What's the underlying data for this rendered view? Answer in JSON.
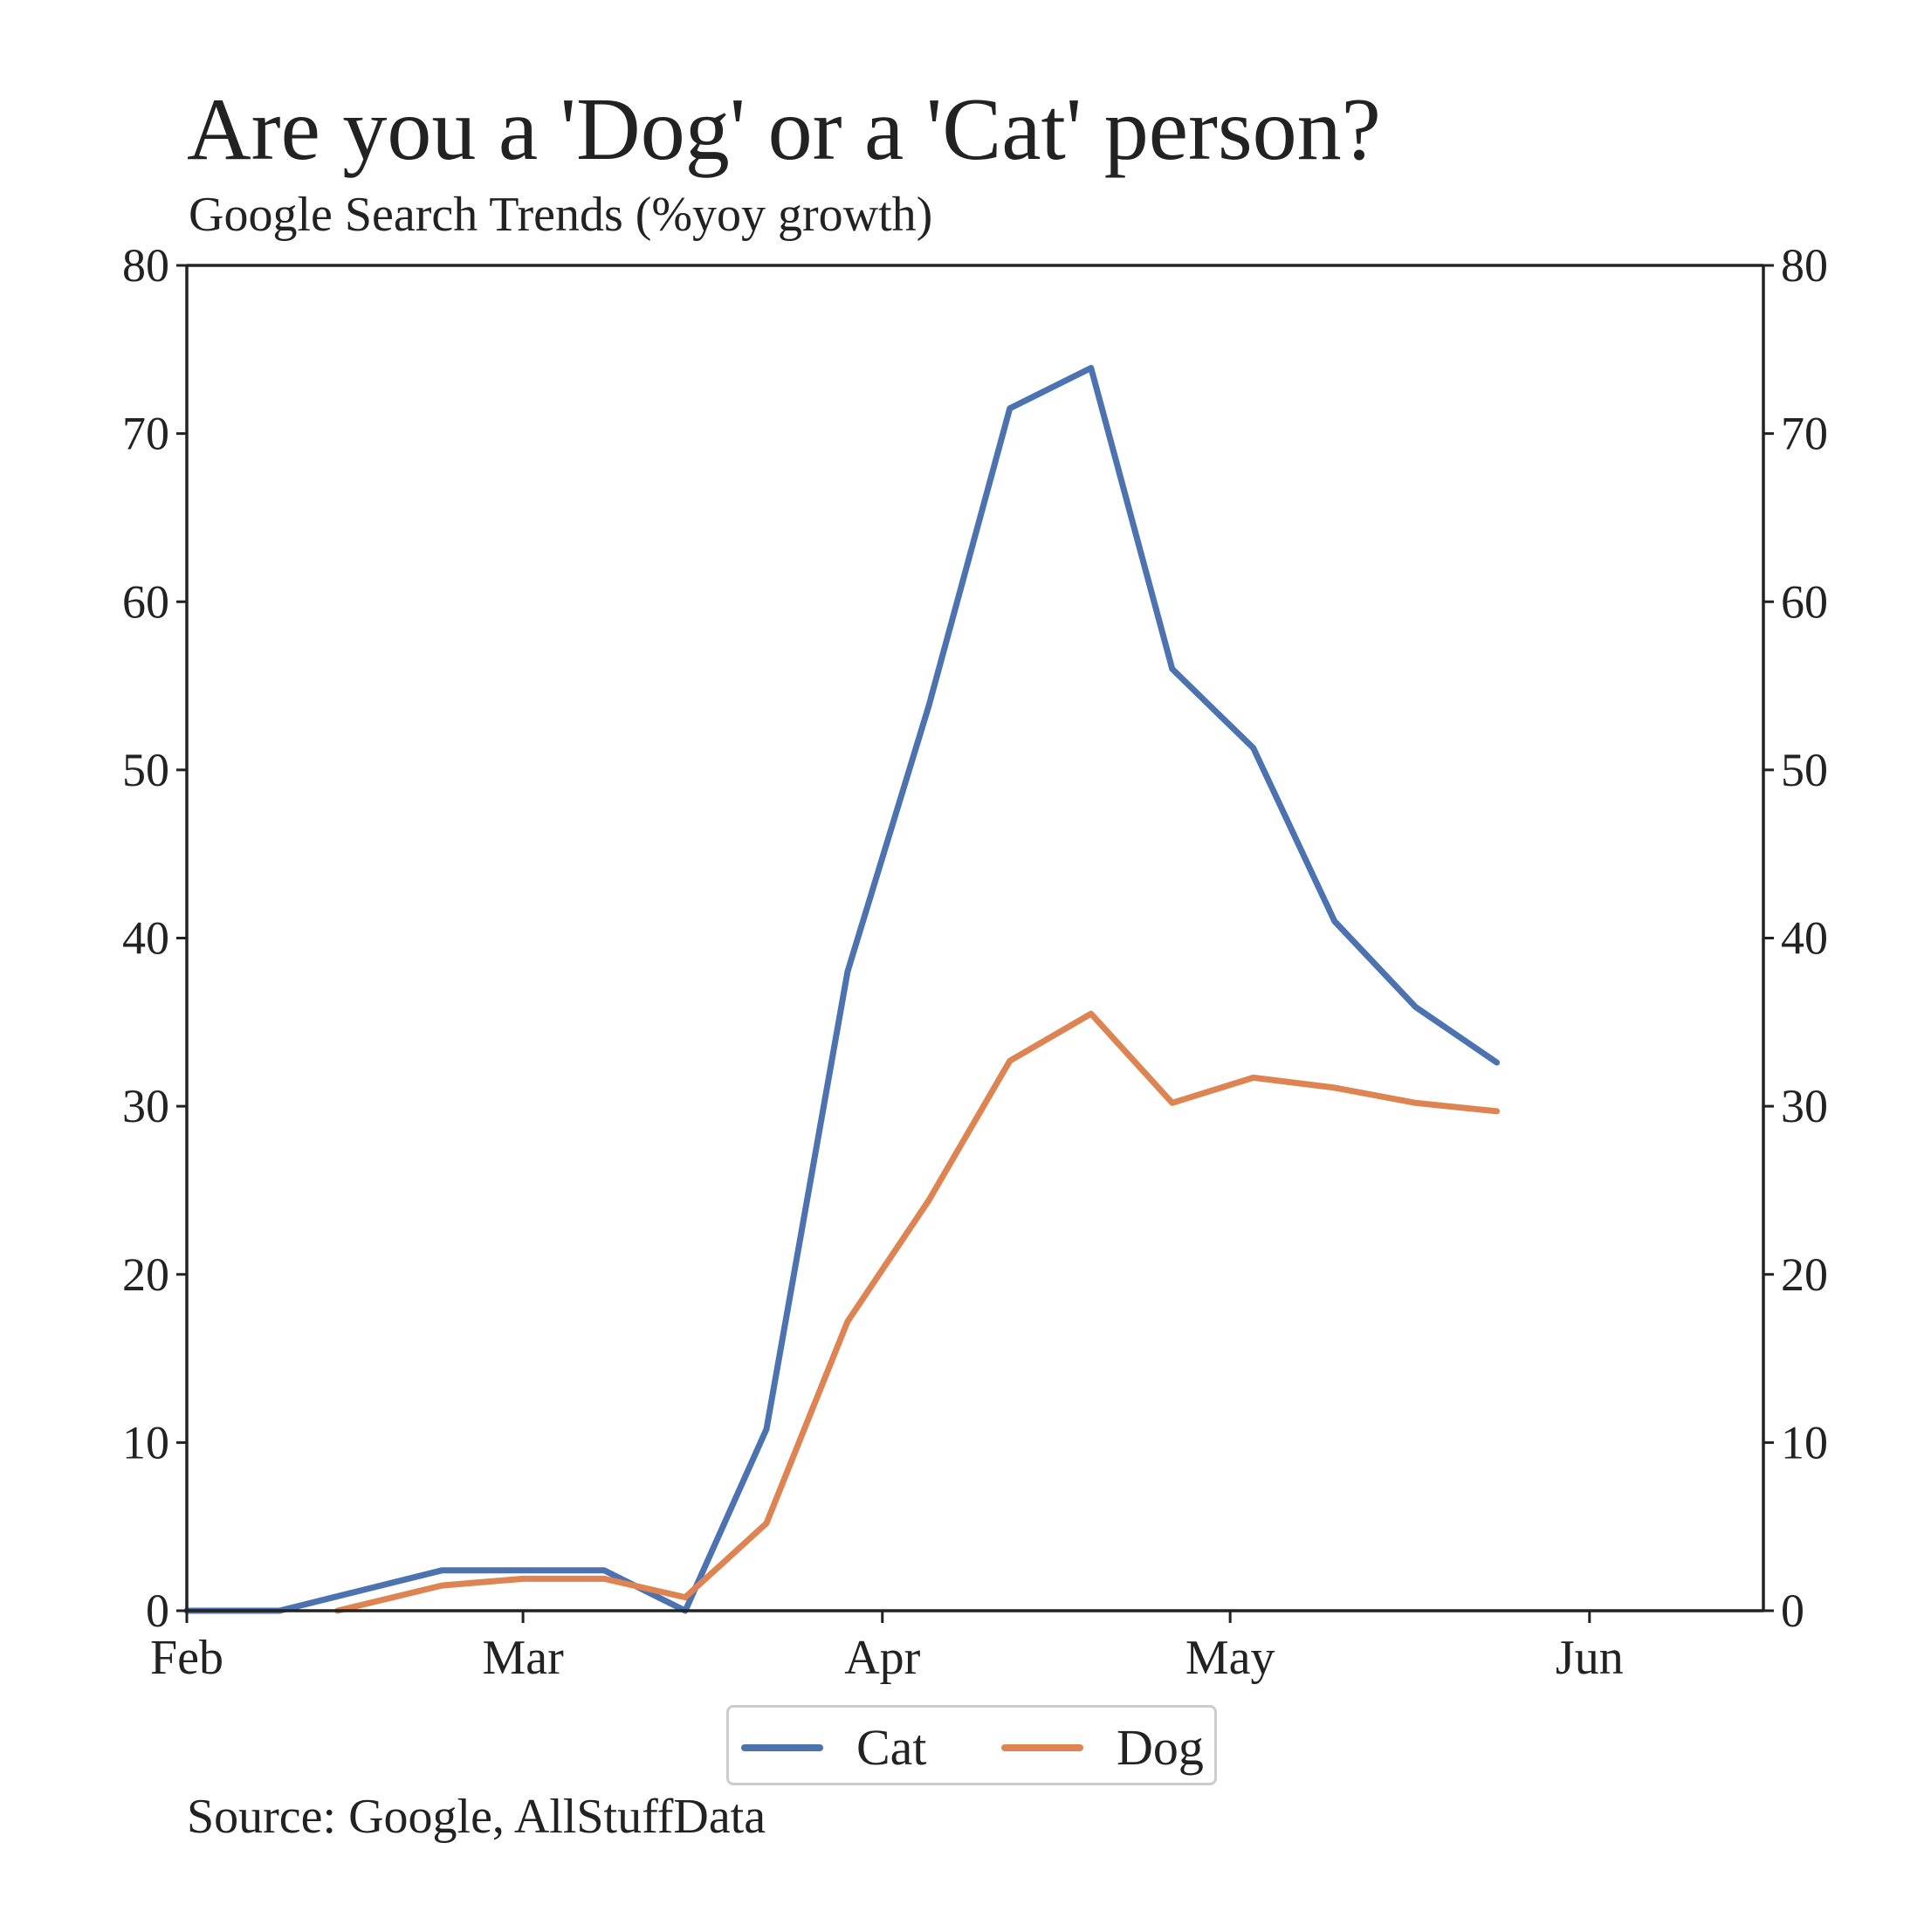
{
  "title": "Are you a 'Dog' or a 'Cat' person?",
  "subtitle": "Google Search Trends (%yoy growth)",
  "source": "Source: Google, AllStuffData",
  "chart_data": {
    "type": "line",
    "x_axis": {
      "type": "date",
      "range": [
        "2020-02-01",
        "2020-06-16"
      ],
      "ticks": [
        "2020-02-01",
        "2020-03-01",
        "2020-04-01",
        "2020-05-01",
        "2020-06-01"
      ],
      "tick_labels": [
        "Feb",
        "Mar",
        "Apr",
        "May",
        "Jun"
      ]
    },
    "y_axis": {
      "range": [
        0,
        80
      ],
      "ticks": [
        0,
        10,
        20,
        30,
        40,
        50,
        60,
        70,
        80
      ],
      "mirrored_right": true
    },
    "grid": false,
    "legend": "bottom-center",
    "series": [
      {
        "name": "Cat",
        "color": "#4c72b0",
        "points": [
          [
            "2020-02-01",
            0
          ],
          [
            "2020-02-09",
            0
          ],
          [
            "2020-02-16",
            1.2
          ],
          [
            "2020-02-23",
            2.4
          ],
          [
            "2020-03-01",
            2.4
          ],
          [
            "2020-03-08",
            2.4
          ],
          [
            "2020-03-15",
            0
          ],
          [
            "2020-03-22",
            10.8
          ],
          [
            "2020-03-29",
            38
          ],
          [
            "2020-04-05",
            53.8
          ],
          [
            "2020-04-12",
            71.5
          ],
          [
            "2020-04-19",
            73.9
          ],
          [
            "2020-04-26",
            56
          ],
          [
            "2020-05-03",
            51.3
          ],
          [
            "2020-05-10",
            41
          ],
          [
            "2020-05-17",
            35.9
          ],
          [
            "2020-05-24",
            32.6
          ]
        ]
      },
      {
        "name": "Dog",
        "color": "#dd8452",
        "points": [
          [
            "2020-02-14",
            0
          ],
          [
            "2020-02-23",
            1.5
          ],
          [
            "2020-03-01",
            1.9
          ],
          [
            "2020-03-08",
            1.9
          ],
          [
            "2020-03-15",
            0.8
          ],
          [
            "2020-03-22",
            5.2
          ],
          [
            "2020-03-29",
            17.2
          ],
          [
            "2020-04-05",
            24.4
          ],
          [
            "2020-04-12",
            32.7
          ],
          [
            "2020-04-19",
            35.5
          ],
          [
            "2020-04-26",
            30.2
          ],
          [
            "2020-05-03",
            31.7
          ],
          [
            "2020-05-10",
            31.1
          ],
          [
            "2020-05-17",
            30.2
          ],
          [
            "2020-05-24",
            29.7
          ]
        ]
      }
    ]
  }
}
